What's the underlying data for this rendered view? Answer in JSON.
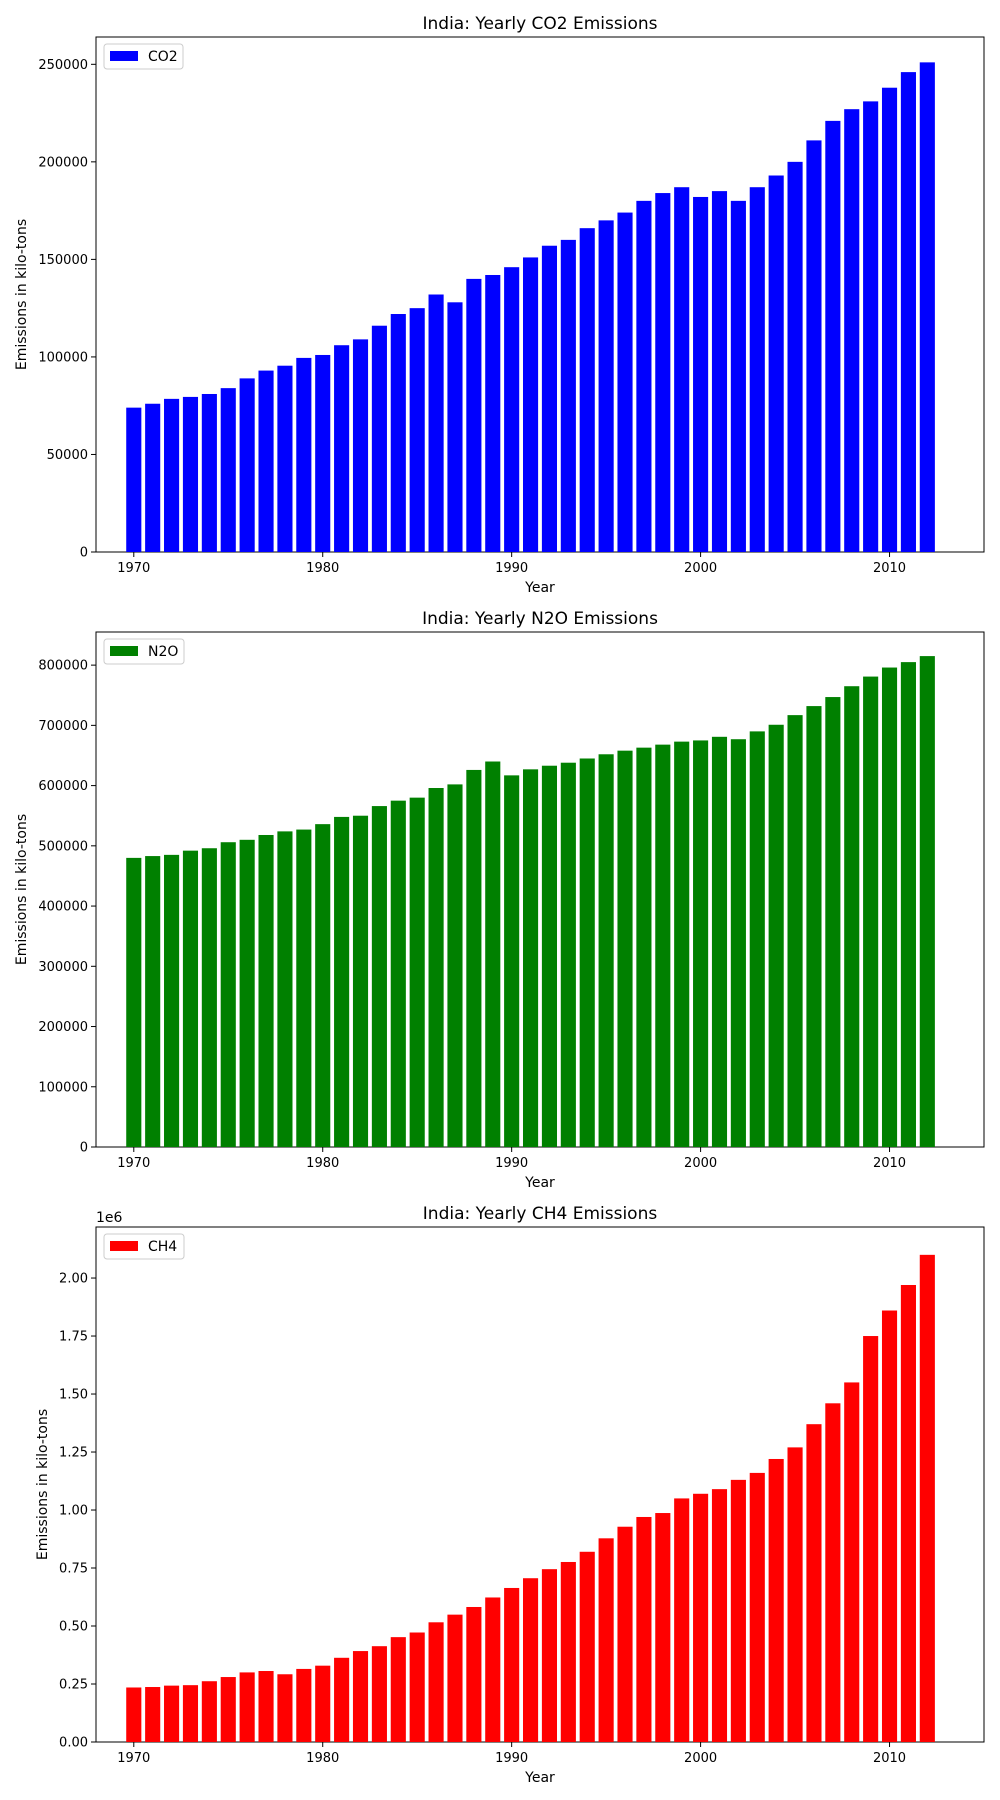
{
  "chart_data": [
    {
      "type": "bar",
      "title": "India: Yearly CO2 Emissions",
      "xlabel": "Year",
      "ylabel": "Emissions in kilo-tons",
      "legend": {
        "label": "CO2",
        "placement": "top-left"
      },
      "color": "#0000ff",
      "x": [
        1970,
        1971,
        1972,
        1973,
        1974,
        1975,
        1976,
        1977,
        1978,
        1979,
        1980,
        1981,
        1982,
        1983,
        1984,
        1985,
        1986,
        1987,
        1988,
        1989,
        1990,
        1991,
        1992,
        1993,
        1994,
        1995,
        1996,
        1997,
        1998,
        1999,
        2000,
        2001,
        2002,
        2003,
        2004,
        2005,
        2006,
        2007,
        2008,
        2009,
        2010,
        2011,
        2012
      ],
      "values": [
        74000,
        76000,
        78500,
        79500,
        81000,
        84000,
        89000,
        93000,
        95500,
        99500,
        101000,
        106000,
        109000,
        116000,
        122000,
        125000,
        132000,
        128000,
        140000,
        142000,
        146000,
        151000,
        157000,
        160000,
        166000,
        170000,
        174000,
        180000,
        184000,
        187000,
        182000,
        185000,
        180000,
        187000,
        193000,
        200000,
        211000,
        221000,
        227000,
        231000,
        238000,
        246000,
        251000
      ],
      "xlim": [
        1968,
        2015
      ],
      "ylim": [
        0,
        264000
      ],
      "xticks": [
        "1970",
        "1980",
        "1990",
        "2000",
        "2010"
      ],
      "yticks": [
        "0",
        "50000",
        "100000",
        "150000",
        "200000",
        "250000"
      ],
      "grid": false
    },
    {
      "type": "bar",
      "title": "India: Yearly N2O Emissions",
      "xlabel": "Year",
      "ylabel": "Emissions in kilo-tons",
      "legend": {
        "label": "N2O",
        "placement": "top-left"
      },
      "color": "#008000",
      "x": [
        1970,
        1971,
        1972,
        1973,
        1974,
        1975,
        1976,
        1977,
        1978,
        1979,
        1980,
        1981,
        1982,
        1983,
        1984,
        1985,
        1986,
        1987,
        1988,
        1989,
        1990,
        1991,
        1992,
        1993,
        1994,
        1995,
        1996,
        1997,
        1998,
        1999,
        2000,
        2001,
        2002,
        2003,
        2004,
        2005,
        2006,
        2007,
        2008,
        2009,
        2010,
        2011,
        2012
      ],
      "values": [
        480000,
        483000,
        485000,
        492000,
        496000,
        506000,
        510000,
        518000,
        524000,
        527000,
        536000,
        548000,
        550000,
        566000,
        575000,
        580000,
        596000,
        602000,
        626000,
        640000,
        617000,
        627000,
        633000,
        638000,
        645000,
        652000,
        658000,
        663000,
        668000,
        673000,
        675000,
        681000,
        677000,
        690000,
        701000,
        717000,
        732000,
        747000,
        765000,
        781000,
        796000,
        805000,
        815000
      ],
      "xlim": [
        1968,
        2015
      ],
      "ylim": [
        0,
        855000
      ],
      "xticks": [
        "1970",
        "1980",
        "1990",
        "2000",
        "2010"
      ],
      "yticks": [
        "0",
        "100000",
        "200000",
        "300000",
        "400000",
        "500000",
        "600000",
        "700000",
        "800000"
      ],
      "grid": false
    },
    {
      "type": "bar",
      "title": "India: Yearly CH4 Emissions",
      "xlabel": "Year",
      "ylabel": "Emissions in kilo-tons",
      "offset_label": "1e6",
      "legend": {
        "label": "CH4",
        "placement": "top-left"
      },
      "color": "#ff0000",
      "x": [
        1970,
        1971,
        1972,
        1973,
        1974,
        1975,
        1976,
        1977,
        1978,
        1979,
        1980,
        1981,
        1982,
        1983,
        1984,
        1985,
        1986,
        1987,
        1988,
        1989,
        1990,
        1991,
        1992,
        1993,
        1994,
        1995,
        1996,
        1997,
        1998,
        1999,
        2000,
        2001,
        2002,
        2003,
        2004,
        2005,
        2006,
        2007,
        2008,
        2009,
        2010,
        2011,
        2012
      ],
      "values": [
        235000,
        237000,
        243000,
        245000,
        262000,
        280000,
        300000,
        306000,
        292000,
        315000,
        329000,
        363000,
        392000,
        413000,
        452000,
        472000,
        516000,
        549000,
        582000,
        623000,
        664000,
        706000,
        745000,
        776000,
        820000,
        878000,
        928000,
        970000,
        987000,
        1050000,
        1070000,
        1090000,
        1130000,
        1160000,
        1220000,
        1270000,
        1370000,
        1460000,
        1550000,
        1750000,
        1860000,
        1970000,
        2100000
      ],
      "xlim": [
        1968,
        2015
      ],
      "ylim": [
        0,
        2220000
      ],
      "xticks": [
        "1970",
        "1980",
        "1990",
        "2000",
        "2010"
      ],
      "yticks": [
        "0.00",
        "0.25",
        "0.50",
        "0.75",
        "1.00",
        "1.25",
        "1.50",
        "1.75",
        "2.00"
      ],
      "ytick_values": [
        0,
        250000,
        500000,
        750000,
        1000000,
        1250000,
        1500000,
        1750000,
        2000000
      ],
      "grid": false
    }
  ]
}
